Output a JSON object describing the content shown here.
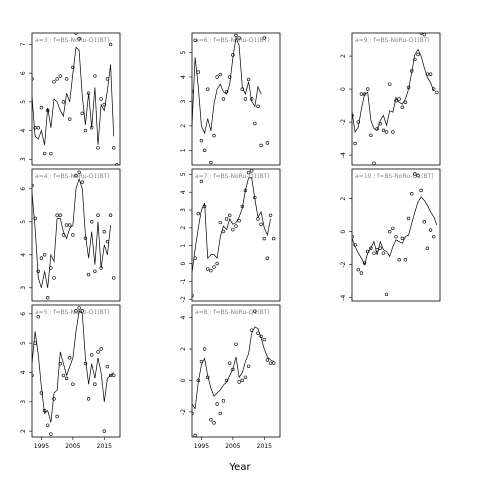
{
  "chart_data": {
    "type": "scatter",
    "xlabel": "Year",
    "overlay": "line",
    "panels": [
      {
        "label": "a=3 : f=BS-NoRu-Q1(BT)",
        "xlim": [
          1992,
          2020
        ],
        "ylim": [
          2.8,
          7.4
        ],
        "yticks": [
          3,
          4,
          5,
          6,
          7
        ],
        "xticks": [],
        "points": {
          "x": [
            1992,
            1993,
            1994,
            1995,
            1996,
            1997,
            1998,
            1999,
            2000,
            2001,
            2002,
            2003,
            2004,
            2005,
            2006,
            2007,
            2008,
            2009,
            2010,
            2011,
            2012,
            2013,
            2014,
            2015,
            2016,
            2017,
            2018,
            2019
          ],
          "y": [
            5.8,
            4.1,
            4.1,
            4.8,
            3.2,
            4.7,
            3.2,
            5.7,
            5.8,
            5.9,
            5.0,
            5.8,
            4.4,
            6.2,
            7.4,
            7.2,
            4.6,
            4.0,
            5.3,
            4.1,
            5.9,
            3.4,
            5.1,
            4.9,
            5.8,
            7.0,
            3.4,
            2.8
          ]
        },
        "line": {
          "x": [
            1992,
            1993,
            1994,
            1995,
            1996,
            1997,
            1998,
            1999,
            2000,
            2001,
            2002,
            2003,
            2004,
            2005,
            2006,
            2007,
            2008,
            2009,
            2010,
            2011,
            2012,
            2013,
            2014,
            2015,
            2016,
            2017,
            2018
          ],
          "y": [
            5.2,
            3.8,
            3.7,
            4.0,
            3.5,
            4.8,
            4.1,
            5.1,
            5.0,
            4.7,
            4.5,
            5.3,
            5.0,
            6.0,
            6.9,
            6.8,
            5.2,
            4.2,
            5.3,
            4.1,
            5.5,
            3.5,
            4.9,
            4.7,
            5.4,
            6.3,
            3.8
          ]
        }
      },
      {
        "label": "a=6 : f=BS-NoRu-Q1(BT)",
        "xlim": [
          1992,
          2020
        ],
        "ylim": [
          0.4,
          5.8
        ],
        "yticks": [
          1,
          2,
          3,
          4,
          5
        ],
        "xticks": [],
        "points": {
          "x": [
            1992,
            1993,
            1994,
            1995,
            1996,
            1997,
            1998,
            1999,
            2000,
            2001,
            2002,
            2003,
            2004,
            2005,
            2006,
            2007,
            2008,
            2009,
            2010,
            2011,
            2012,
            2013,
            2014,
            2015,
            2016
          ],
          "y": [
            3.4,
            5.5,
            4.2,
            1.4,
            1.0,
            3.5,
            0.5,
            1.6,
            4.0,
            4.1,
            3.1,
            3.4,
            4.0,
            4.9,
            5.7,
            5.6,
            3.5,
            3.1,
            3.9,
            3.1,
            2.1,
            2.8,
            1.2,
            5.6,
            1.3
          ]
        },
        "line": {
          "x": [
            1992,
            1993,
            1994,
            1995,
            1996,
            1997,
            1998,
            1999,
            2000,
            2001,
            2002,
            2003,
            2004,
            2005,
            2006,
            2007,
            2008,
            2009,
            2010,
            2011,
            2012,
            2013,
            2014
          ],
          "y": [
            2.0,
            4.8,
            3.6,
            2.0,
            1.7,
            2.3,
            1.8,
            2.9,
            3.5,
            3.7,
            3.4,
            3.3,
            3.7,
            4.8,
            5.6,
            5.3,
            3.6,
            3.3,
            3.8,
            3.0,
            2.8,
            3.6,
            3.3
          ]
        }
      },
      {
        "label": "a=9 : f=BS-NoRu-Q1(BT)",
        "xlim": [
          1992,
          2020
        ],
        "ylim": [
          -4.6,
          3.4
        ],
        "yticks": [
          -4,
          -2,
          0,
          2
        ],
        "xticks": [],
        "points": {
          "x": [
            1992,
            1993,
            1994,
            1995,
            1996,
            1997,
            1998,
            1999,
            2000,
            2001,
            2002,
            2003,
            2004,
            2005,
            2006,
            2007,
            2008,
            2009,
            2010,
            2011,
            2012,
            2013,
            2014,
            2015,
            2016,
            2017,
            2018,
            2019
          ],
          "y": [
            -1.6,
            -3.3,
            -2.0,
            -0.3,
            -0.3,
            0.0,
            -2.8,
            -4.5,
            -2.4,
            -2.1,
            -2.5,
            -2.6,
            0.3,
            -2.6,
            -0.7,
            -0.6,
            -1.1,
            -0.8,
            0.1,
            1.1,
            1.8,
            2.1,
            3.4,
            3.3,
            0.9,
            0.9,
            0.0,
            -0.2
          ]
        },
        "line": {
          "x": [
            1992,
            1993,
            1994,
            1995,
            1996,
            1997,
            1998,
            1999,
            2000,
            2001,
            2002,
            2003,
            2004,
            2005,
            2006,
            2007,
            2008,
            2009,
            2010,
            2011,
            2012,
            2013,
            2014,
            2015,
            2016,
            2017,
            2018
          ],
          "y": [
            -1.4,
            -2.6,
            -2.3,
            -1.2,
            -0.3,
            -0.2,
            -1.9,
            -2.4,
            -2.5,
            -1.9,
            -1.6,
            -2.2,
            -1.3,
            -1.4,
            -0.5,
            -0.8,
            -0.9,
            -0.6,
            0.0,
            1.0,
            2.1,
            2.4,
            2.0,
            1.3,
            0.7,
            0.4,
            -0.1
          ]
        }
      },
      {
        "label": "a=4 : f=BS-NoRu-Q1(BT)",
        "xlim": [
          1992,
          2020
        ],
        "ylim": [
          2.6,
          6.6
        ],
        "yticks": [
          3,
          4,
          5,
          6
        ],
        "xticks": [],
        "points": {
          "x": [
            1992,
            1993,
            1994,
            1995,
            1996,
            1997,
            1998,
            1999,
            2000,
            2001,
            2002,
            2003,
            2004,
            2005,
            2006,
            2007,
            2008,
            2009,
            2010,
            2011,
            2012,
            2013,
            2014,
            2015,
            2016,
            2017,
            2018
          ],
          "y": [
            6.1,
            5.1,
            3.5,
            3.9,
            4.0,
            2.7,
            3.6,
            3.3,
            5.2,
            5.2,
            4.6,
            4.9,
            4.9,
            4.6,
            6.4,
            6.5,
            6.2,
            4.5,
            3.4,
            5.0,
            3.5,
            5.2,
            3.6,
            4.7,
            4.4,
            5.2,
            3.3
          ]
        },
        "line": {
          "x": [
            1992,
            1993,
            1994,
            1995,
            1996,
            1997,
            1998,
            1999,
            2000,
            2001,
            2002,
            2003,
            2004,
            2005,
            2006,
            2007,
            2008,
            2009,
            2010,
            2011,
            2012,
            2013,
            2014,
            2015,
            2016,
            2017
          ],
          "y": [
            5.9,
            4.8,
            3.3,
            3.0,
            3.5,
            3.0,
            4.0,
            3.8,
            5.1,
            5.1,
            4.7,
            4.5,
            4.8,
            4.9,
            6.0,
            6.3,
            6.0,
            4.6,
            3.9,
            4.7,
            3.7,
            5.0,
            3.6,
            4.3,
            4.0,
            4.9
          ]
        }
      },
      {
        "label": "a=7 : f=BS-NoRu-Q1(BT)",
        "xlim": [
          1992,
          2020
        ],
        "ylim": [
          -2.1,
          5.3
        ],
        "yticks": [
          -2,
          -1,
          0,
          1,
          2,
          3,
          4,
          5
        ],
        "xticks": [],
        "points": {
          "x": [
            1992,
            1993,
            1994,
            1995,
            1996,
            1997,
            1998,
            1999,
            2000,
            2001,
            2002,
            2003,
            2004,
            2005,
            2006,
            2007,
            2008,
            2009,
            2010,
            2011,
            2012,
            2013,
            2014,
            2015,
            2016,
            2017,
            2018
          ],
          "y": [
            -1.8,
            0.3,
            2.8,
            4.6,
            3.2,
            -0.3,
            -0.4,
            -0.2,
            0.0,
            2.3,
            1.8,
            2.5,
            2.7,
            1.9,
            2.1,
            2.4,
            3.2,
            4.1,
            5.1,
            5.2,
            3.7,
            2.5,
            2.2,
            1.4,
            0.3,
            2.7,
            1.4
          ]
        },
        "line": {
          "x": [
            1992,
            1993,
            1994,
            1995,
            1996,
            1997,
            1998,
            1999,
            2000,
            2001,
            2002,
            2003,
            2004,
            2005,
            2006,
            2007,
            2008,
            2009,
            2010,
            2011,
            2012,
            2013,
            2014,
            2015,
            2016,
            2017
          ],
          "y": [
            -0.5,
            0.8,
            2.0,
            3.0,
            3.4,
            0.3,
            0.5,
            0.5,
            0.3,
            1.5,
            2.1,
            1.9,
            2.5,
            2.2,
            2.3,
            2.6,
            3.1,
            4.1,
            4.8,
            4.8,
            3.6,
            2.6,
            2.9,
            2.0,
            1.6,
            2.5
          ]
        }
      },
      {
        "label": "a=10 : f=BS-NoRu-Q1(BT)",
        "xlim": [
          1992,
          2020
        ],
        "ylim": [
          -4.2,
          3.8
        ],
        "yticks": [
          -4,
          -2,
          0,
          2
        ],
        "xticks": [],
        "points": {
          "x": [
            1992,
            1993,
            1994,
            1995,
            1996,
            1997,
            1998,
            1999,
            2000,
            2001,
            2002,
            2003,
            2004,
            2005,
            2006,
            2007,
            2008,
            2009,
            2010,
            2011,
            2012,
            2013,
            2014,
            2015,
            2016,
            2017,
            2018
          ],
          "y": [
            -0.3,
            -0.8,
            -2.3,
            -2.5,
            -1.9,
            -1.2,
            -1.0,
            -1.3,
            -1.1,
            -1.0,
            -1.3,
            -3.8,
            0.0,
            0.2,
            -0.3,
            -1.7,
            -0.4,
            -1.7,
            0.8,
            2.3,
            3.5,
            3.4,
            2.5,
            0.6,
            -1.0,
            0.1,
            -0.3
          ]
        },
        "line": {
          "x": [
            1992,
            1993,
            1994,
            1995,
            1996,
            1997,
            1998,
            1999,
            2000,
            2001,
            2002,
            2003,
            2004,
            2005,
            2006,
            2007,
            2008,
            2009,
            2010,
            2011,
            2012,
            2013,
            2014,
            2015,
            2016,
            2017,
            2018,
            2019
          ],
          "y": [
            -0.4,
            -0.9,
            -1.3,
            -1.6,
            -2.0,
            -1.3,
            -1.0,
            -0.6,
            -1.4,
            -0.6,
            -1.1,
            -1.2,
            -1.5,
            -0.9,
            -0.5,
            -0.6,
            -0.7,
            -0.3,
            -0.2,
            0.5,
            1.2,
            1.8,
            2.1,
            1.9,
            1.6,
            1.2,
            0.9,
            0.4
          ]
        }
      },
      {
        "label": "a=5 : f=BS-NoRu-Q1(BT)",
        "xlim": [
          1992,
          2020
        ],
        "ylim": [
          1.8,
          6.3
        ],
        "yticks": [
          2,
          3,
          4,
          5,
          6
        ],
        "xticks": [
          1995,
          2005,
          2015
        ],
        "points": {
          "x": [
            1992,
            1993,
            1994,
            1995,
            1996,
            1997,
            1998,
            1999,
            2000,
            2001,
            2002,
            2003,
            2004,
            2005,
            2006,
            2007,
            2008,
            2009,
            2010,
            2011,
            2012,
            2013,
            2014,
            2015,
            2016,
            2017,
            2018
          ],
          "y": [
            3.9,
            5.0,
            5.9,
            3.3,
            2.7,
            2.2,
            1.9,
            3.1,
            2.5,
            4.3,
            3.9,
            3.8,
            4.5,
            3.6,
            6.1,
            6.2,
            6.1,
            4.3,
            3.1,
            4.6,
            3.6,
            4.7,
            4.8,
            2.0,
            4.2,
            3.9,
            3.9
          ]
        },
        "line": {
          "x": [
            1992,
            1993,
            1994,
            1995,
            1996,
            1997,
            1998,
            1999,
            2000,
            2001,
            2002,
            2003,
            2004,
            2005,
            2006,
            2007,
            2008,
            2009,
            2010,
            2011,
            2012,
            2013,
            2014,
            2015,
            2016,
            2017,
            2018
          ],
          "y": [
            4.3,
            5.4,
            4.6,
            3.5,
            2.6,
            2.7,
            2.3,
            3.3,
            3.4,
            4.7,
            4.3,
            3.9,
            4.2,
            4.5,
            5.4,
            6.1,
            6.0,
            4.5,
            3.6,
            4.3,
            3.8,
            4.5,
            4.0,
            3.0,
            3.8,
            3.9,
            4.0
          ]
        }
      },
      {
        "label": "a=8 : f=BS-NoRu-Q1(BT)",
        "xlim": [
          1992,
          2020
        ],
        "ylim": [
          -3.6,
          4.8
        ],
        "yticks": [
          -2,
          0,
          2,
          4
        ],
        "xticks": [
          1995,
          2005,
          2015
        ],
        "points": {
          "x": [
            1992,
            1993,
            1994,
            1995,
            1996,
            1997,
            1998,
            1999,
            2000,
            2001,
            2002,
            2003,
            2004,
            2005,
            2006,
            2007,
            2008,
            2009,
            2010,
            2011,
            2012,
            2013,
            2014,
            2015,
            2016,
            2017,
            2018
          ],
          "y": [
            -2.1,
            -3.5,
            0.0,
            1.2,
            2.0,
            0.2,
            -2.5,
            -2.7,
            -1.5,
            -2.1,
            -1.3,
            0.0,
            1.1,
            0.7,
            2.3,
            -0.1,
            0.0,
            0.2,
            0.9,
            3.2,
            4.4,
            3.0,
            2.8,
            2.6,
            1.3,
            1.1,
            1.1
          ]
        },
        "line": {
          "x": [
            1992,
            1993,
            1994,
            1995,
            1996,
            1997,
            1998,
            1999,
            2000,
            2001,
            2002,
            2003,
            2004,
            2005,
            2006,
            2007,
            2008,
            2009,
            2010,
            2011,
            2012,
            2013,
            2014,
            2015,
            2016,
            2017,
            2018
          ],
          "y": [
            -1.5,
            -1.8,
            -0.1,
            1.0,
            1.4,
            0.3,
            -0.5,
            -1.0,
            -0.8,
            -0.6,
            -0.3,
            -0.1,
            0.3,
            0.7,
            1.5,
            0.2,
            0.5,
            1.2,
            1.7,
            3.0,
            3.4,
            3.3,
            2.7,
            2.0,
            1.5,
            1.3,
            1.2
          ]
        }
      }
    ]
  }
}
